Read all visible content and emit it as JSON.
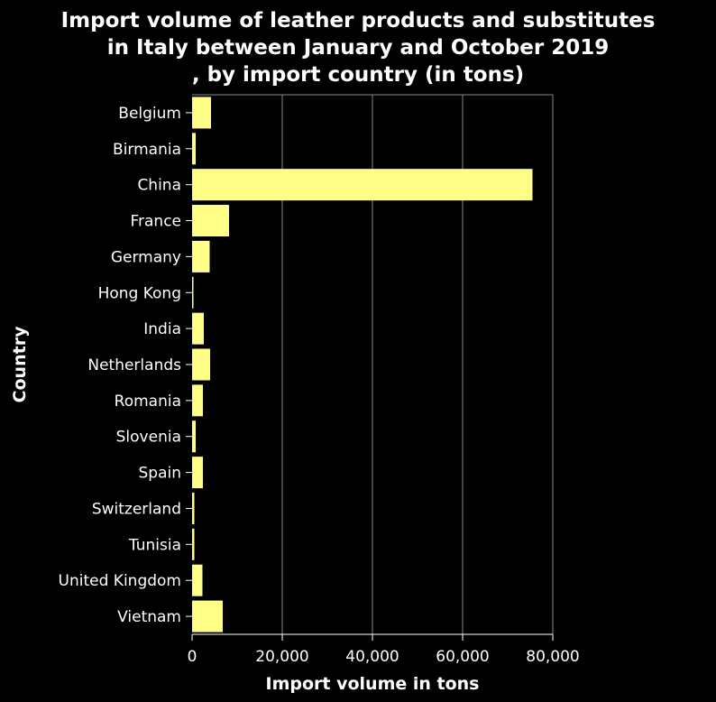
{
  "chart_data": {
    "type": "bar",
    "orientation": "horizontal",
    "title_lines": [
      "Import volume of leather products and substitutes",
      "in Italy between January and October 2019",
      ", by import country (in tons)"
    ],
    "xlabel": "Import volume in tons",
    "ylabel": "Country",
    "categories": [
      "Belgium",
      "Birmania",
      "China",
      "France",
      "Germany",
      "Hong Kong",
      "India",
      "Netherlands",
      "Romania",
      "Slovenia",
      "Spain",
      "Switzerland",
      "Tunisia",
      "United Kingdom",
      "Vietnam"
    ],
    "values": [
      4200,
      800,
      75500,
      8200,
      3900,
      300,
      2600,
      4000,
      2400,
      800,
      2400,
      500,
      500,
      2300,
      6800
    ],
    "xlim": [
      0,
      80000
    ],
    "xticks": [
      0,
      20000,
      40000,
      60000,
      80000
    ],
    "xtick_labels": [
      "0",
      "20,000",
      "40,000",
      "60,000",
      "80,000"
    ],
    "grid": "vertical",
    "bar_color": "#ffff88",
    "background_color": "#000000",
    "grid_color": "#888888"
  }
}
